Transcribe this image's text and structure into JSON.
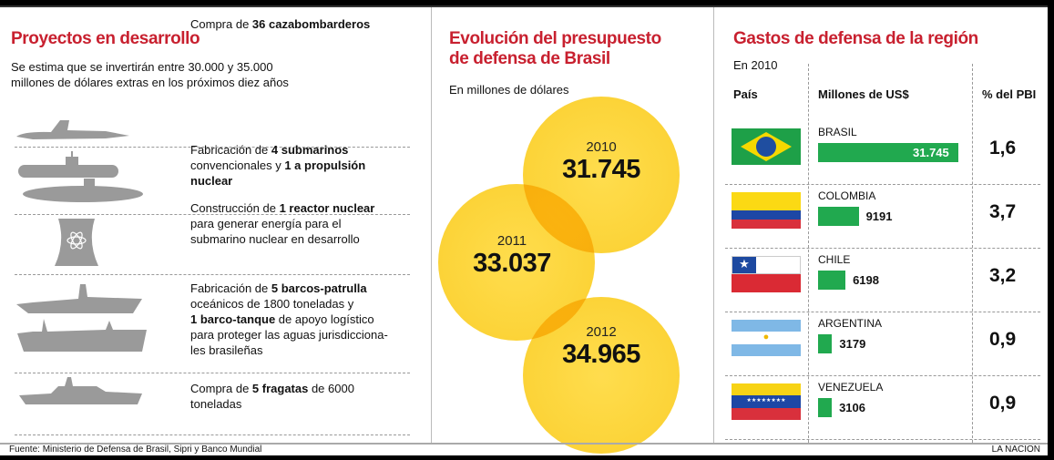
{
  "left": {
    "title": "Proyectos en desarrollo",
    "subtitle_lines": [
      "Se estima que se invertirán entre 30.000 y 35.000",
      "millones de dólares extras en los próximos diez años"
    ],
    "projects": [
      {
        "icon": "fighter-jet-icon",
        "html": "Compra de <b>36 cazabombarderos</b>"
      },
      {
        "icon": "submarine-icon",
        "html": "Fabricación de <b>4 submarinos</b><br>convencionales y <b>1 a propulsión nuclear</b>"
      },
      {
        "icon": "nuclear-reactor-icon",
        "html": "Construcción de <b>1 reactor nuclear</b><br>para generar energía para el<br>submarino nuclear en desarrollo"
      },
      {
        "icon": "patrol-ship-icon",
        "html": "Fabricación de <b>5 barcos-patrulla</b><br>oceánicos de 1800 toneladas y<br><b>1 barco-tanque</b> de apoyo logístico<br>para proteger las aguas jurisdicciona-<br>les brasileñas"
      },
      {
        "icon": "frigate-icon",
        "html": "Compra de <b>5 fragatas</b> de 6000<br>toneladas"
      }
    ]
  },
  "middle": {
    "title_lines": [
      "Evolución del presupuesto",
      "de defensa de Brasil"
    ],
    "subtitle": "En millones de dólares",
    "budget": [
      {
        "year": "2010",
        "value": "31.745"
      },
      {
        "year": "2011",
        "value": "33.037"
      },
      {
        "year": "2012",
        "value": "34.965"
      }
    ],
    "circle_color": "#fcd023"
  },
  "right": {
    "title": "Gastos de defensa de la región",
    "subtitle": "En 2010",
    "headers": {
      "country": "País",
      "amount": "Millones de US$",
      "gdp": "% del PBI"
    }
  },
  "chart_data": {
    "type": "bar",
    "orientation": "horizontal",
    "title": "Gastos de defensa de la región",
    "subtitle": "En 2010",
    "xlabel": "Millones de US$",
    "categories": [
      "BRASIL",
      "COLOMBIA",
      "CHILE",
      "ARGENTINA",
      "VENEZUELA"
    ],
    "values": [
      31745,
      9191,
      6198,
      3179,
      3106
    ],
    "value_labels": [
      "31.745",
      "9191",
      "6198",
      "3179",
      "3106"
    ],
    "gdp_percent": [
      "1,6",
      "3,7",
      "3,2",
      "0,9",
      "0,9"
    ],
    "bar_color": "#21a94f"
  },
  "footer": {
    "source": "Fuente: Ministerio de Defensa de Brasil, Sipri y Banco Mundial",
    "credit": "LA NACION"
  }
}
